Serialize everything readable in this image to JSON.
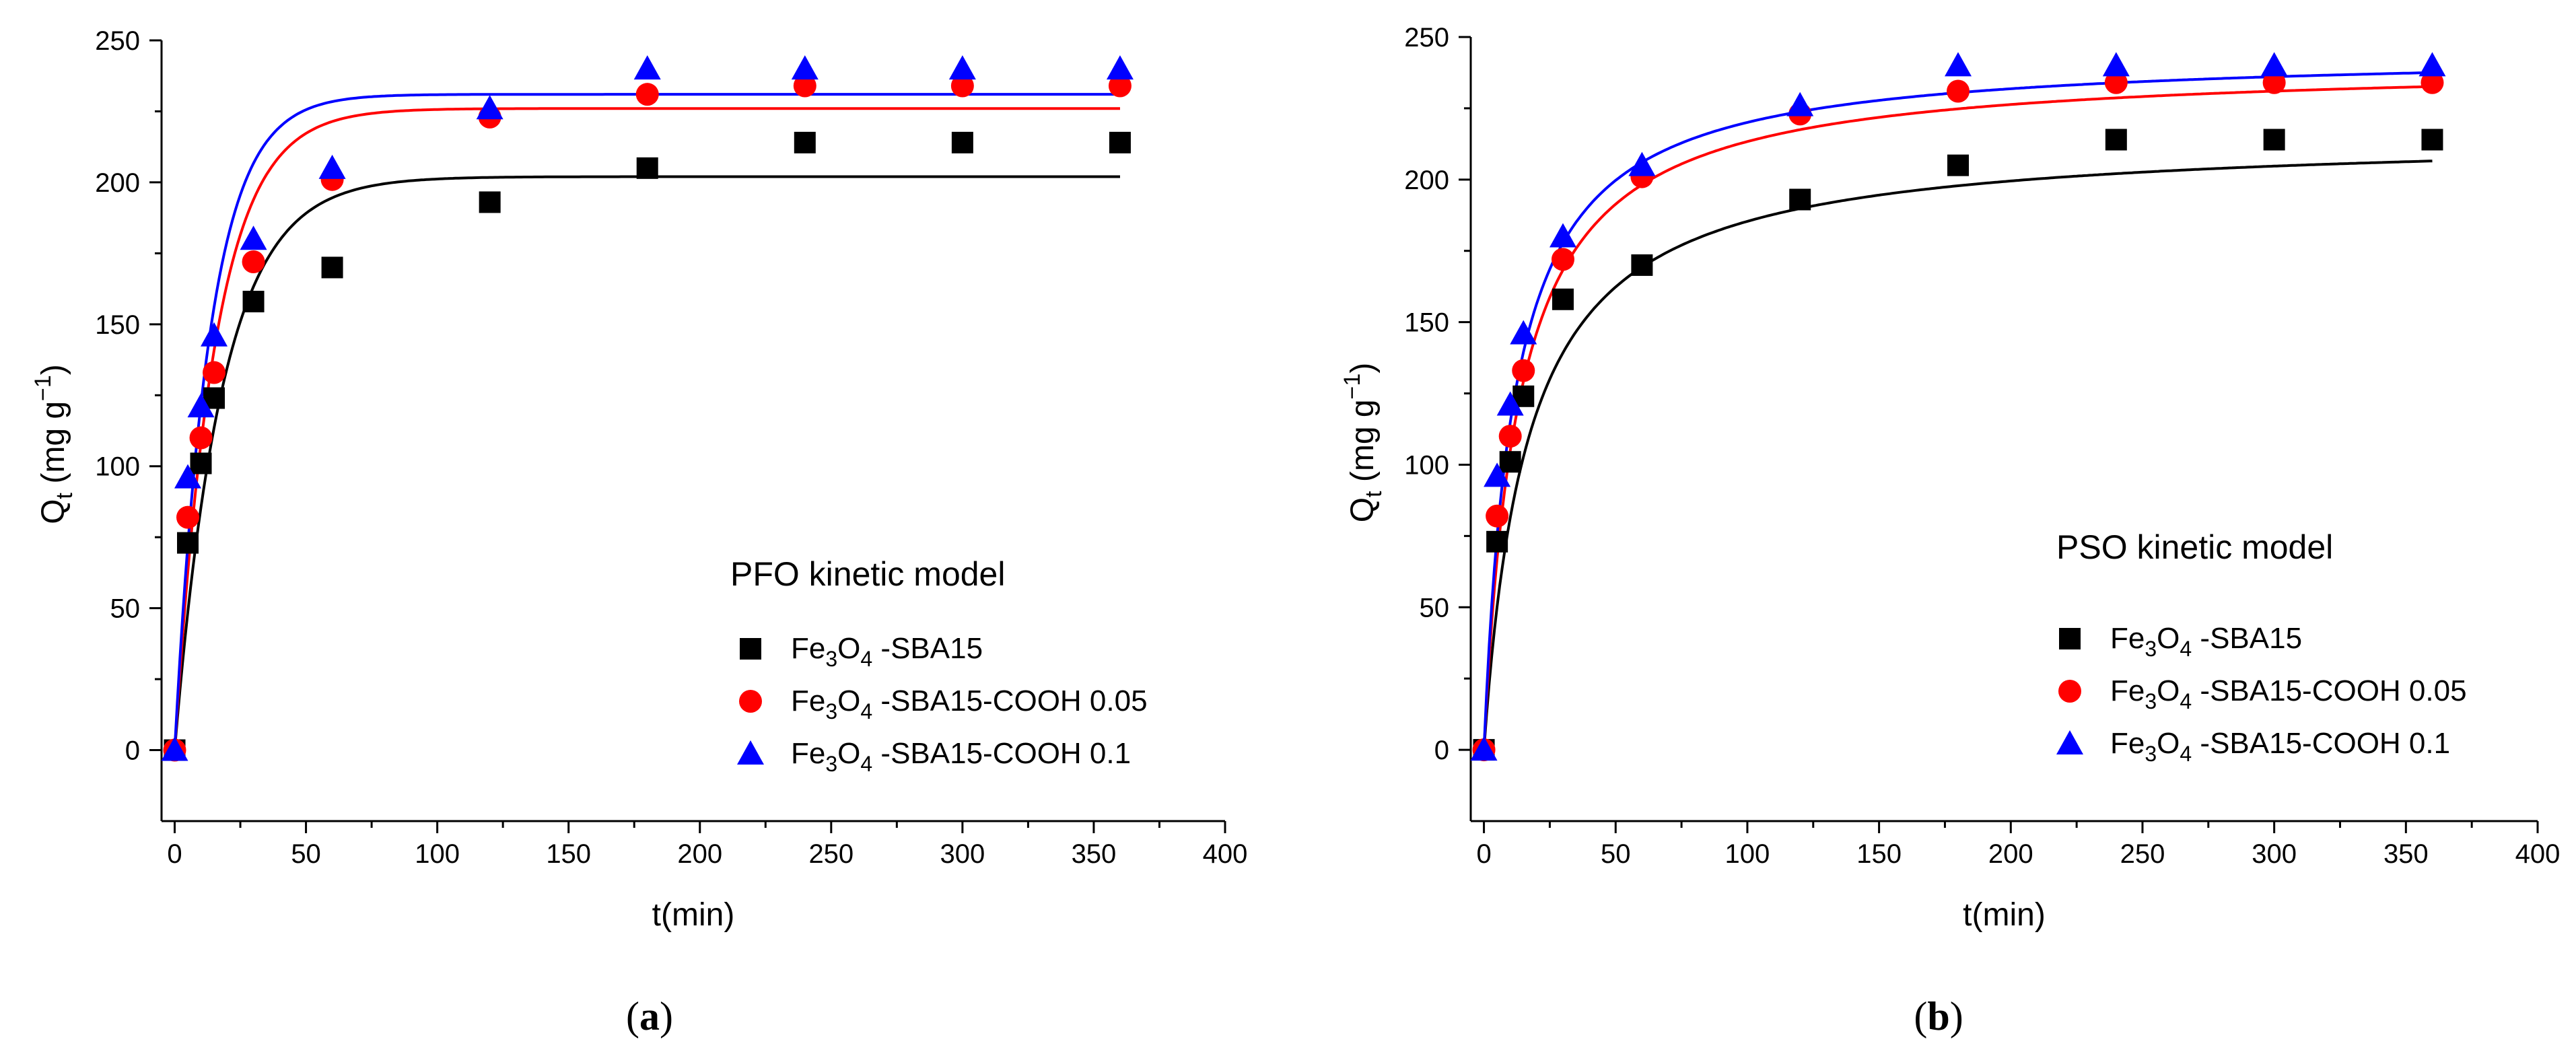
{
  "chart_data": [
    {
      "type": "scatter",
      "panel_label": "a",
      "model_title": "PFO kinetic model",
      "xlabel": "t(min)",
      "ylabel_main": "Q",
      "ylabel_sub": "t",
      "ylabel_unit": "(mg g",
      "ylabel_sup": "−1",
      "ylabel_close": ")",
      "xlim": [
        -5,
        400
      ],
      "ylim": [
        -25,
        250
      ],
      "xticks": [
        0,
        50,
        100,
        150,
        200,
        250,
        300,
        350,
        400
      ],
      "yticks": [
        0,
        50,
        100,
        150,
        200,
        250
      ],
      "x": [
        0,
        5,
        10,
        15,
        30,
        60,
        120,
        180,
        240,
        300,
        360
      ],
      "series": [
        {
          "name_prefix": "Fe",
          "name_sub1": "3",
          "name_mid": "O",
          "name_sub2": "4",
          "name_suffix": " -SBA15",
          "color": "#000000",
          "marker": "square",
          "values": [
            0,
            73,
            101,
            124,
            158,
            170,
            193,
            205,
            214,
            214,
            214
          ],
          "fit": {
            "model": "pfo",
            "qe": 202,
            "k": 0.055
          }
        },
        {
          "name_prefix": "Fe",
          "name_sub1": "3",
          "name_mid": "O",
          "name_sub2": "4",
          "name_suffix": " -SBA15-COOH 0.05",
          "color": "#ff0000",
          "marker": "circle",
          "values": [
            0,
            82,
            110,
            133,
            172,
            201,
            223,
            231,
            234,
            234,
            234
          ],
          "fit": {
            "model": "pfo",
            "qe": 226,
            "k": 0.065
          }
        },
        {
          "name_prefix": "Fe",
          "name_sub1": "3",
          "name_mid": "O",
          "name_sub2": "4",
          "name_suffix": " -SBA15-COOH 0.1",
          "color": "#0000ff",
          "marker": "triangle",
          "values": [
            0,
            96,
            121,
            146,
            180,
            205,
            226,
            240,
            240,
            240,
            240
          ],
          "fit": {
            "model": "pfo",
            "qe": 231,
            "k": 0.075
          }
        }
      ]
    },
    {
      "type": "scatter",
      "panel_label": "b",
      "model_title": "PSO kinetic model",
      "xlabel": "t(min)",
      "ylabel_main": "Q",
      "ylabel_sub": "t",
      "ylabel_unit": "(mg g",
      "ylabel_sup": "−1",
      "ylabel_close": ")",
      "xlim": [
        -5,
        400
      ],
      "ylim": [
        -25,
        250
      ],
      "xticks": [
        0,
        50,
        100,
        150,
        200,
        250,
        300,
        350,
        400
      ],
      "yticks": [
        0,
        50,
        100,
        150,
        200,
        250
      ],
      "x": [
        0,
        5,
        10,
        15,
        30,
        60,
        120,
        180,
        240,
        300,
        360
      ],
      "series": [
        {
          "name_prefix": "Fe",
          "name_sub1": "3",
          "name_mid": "O",
          "name_sub2": "4",
          "name_suffix": " -SBA15",
          "color": "#000000",
          "marker": "square",
          "values": [
            0,
            73,
            101,
            124,
            158,
            170,
            193,
            205,
            214,
            214,
            214
          ],
          "fit": {
            "model": "pso",
            "qe": 216,
            "k": 0.00028
          }
        },
        {
          "name_prefix": "Fe",
          "name_sub1": "3",
          "name_mid": "O",
          "name_sub2": "4",
          "name_suffix": " -SBA15-COOH 0.05",
          "color": "#ff0000",
          "marker": "circle",
          "values": [
            0,
            82,
            110,
            133,
            172,
            201,
            223,
            231,
            234,
            234,
            234
          ],
          "fit": {
            "model": "pso",
            "qe": 241,
            "k": 0.00032
          }
        },
        {
          "name_prefix": "Fe",
          "name_sub1": "3",
          "name_mid": "O",
          "name_sub2": "4",
          "name_suffix": " -SBA15-COOH 0.1",
          "color": "#0000ff",
          "marker": "triangle",
          "values": [
            0,
            96,
            121,
            146,
            180,
            205,
            226,
            240,
            240,
            240,
            240
          ],
          "fit": {
            "model": "pso",
            "qe": 245,
            "k": 0.00036
          }
        }
      ]
    }
  ]
}
